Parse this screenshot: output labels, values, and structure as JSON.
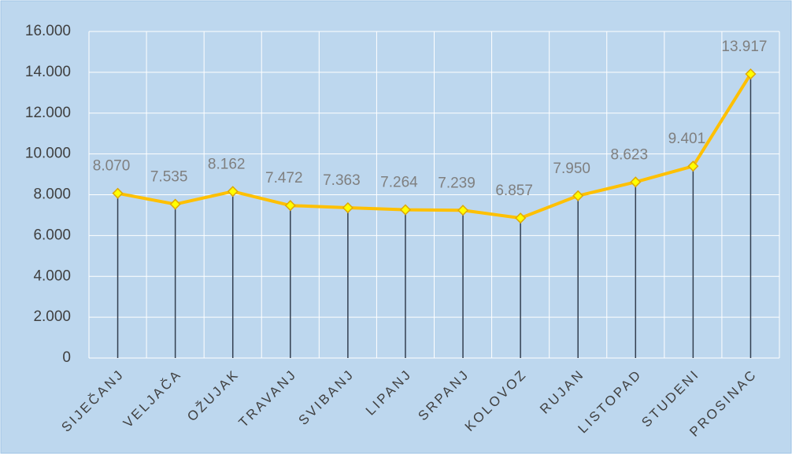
{
  "chart_data": {
    "type": "line",
    "categories": [
      "SIJEČANJ",
      "VELJAČA",
      "OŽUJAK",
      "TRAVANJ",
      "SVIBANJ",
      "LIPANJ",
      "SRPANJ",
      "KOLOVOZ",
      "RUJAN",
      "LISTOPAD",
      "STUDENI",
      "PROSINAC"
    ],
    "values": [
      8070,
      7535,
      8162,
      7472,
      7363,
      7264,
      7239,
      6857,
      7950,
      8623,
      9401,
      13917
    ],
    "value_labels": [
      "8.070",
      "7.535",
      "8.162",
      "7.472",
      "7.363",
      "7.264",
      "7.239",
      "6.857",
      "7.950",
      "8.623",
      "9.401",
      "13.917"
    ],
    "color": "#ffc000",
    "ylim": [
      0,
      16000
    ],
    "yticks": [
      0,
      {
        "value": 2000,
        "label": "2.000"
      },
      {
        "value": 4000,
        "label": "4.000"
      },
      {
        "value": 6000,
        "label": "6.000"
      },
      {
        "value": 8000,
        "label": "8.000"
      },
      {
        "value": 10000,
        "label": "10.000"
      },
      {
        "value": 12000,
        "label": "12.000"
      },
      {
        "value": 14000,
        "label": "14.000"
      },
      {
        "value": 16000,
        "label": "16.000"
      }
    ],
    "grid": true,
    "drop_lines": true
  }
}
